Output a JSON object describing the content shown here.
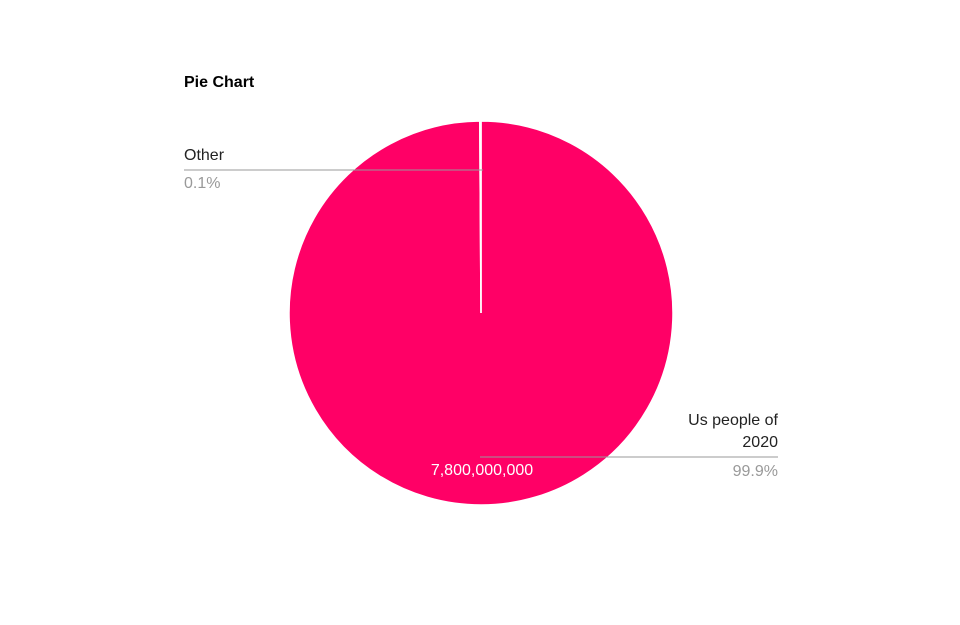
{
  "chart_data": {
    "type": "pie",
    "title": "Pie Chart",
    "categories": [
      "Us people of 2020",
      "Other"
    ],
    "values": [
      99.9,
      0.1
    ],
    "value_labels": [
      "99.9%",
      "0.1%"
    ],
    "colors": [
      "#ff0066",
      "#ff0066"
    ],
    "annotation": "7,800,000,000"
  }
}
